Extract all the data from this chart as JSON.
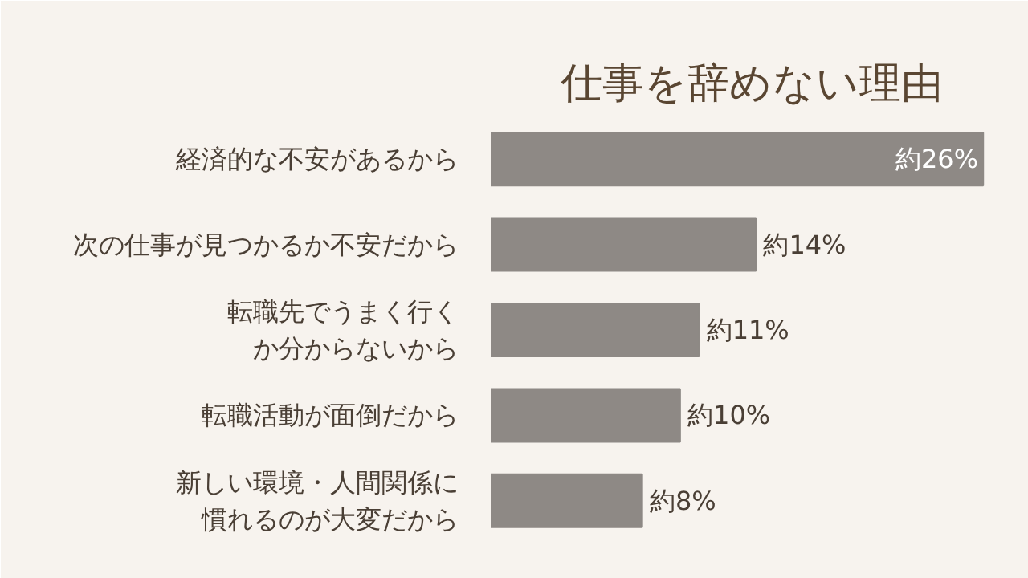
{
  "chart_data": {
    "type": "bar",
    "orientation": "horizontal",
    "title": "仕事を辞めない理由",
    "categories": [
      "経済的な不安があるから",
      "次の仕事が見つかるか不安だから",
      "転職先でうまく行くか分からないから",
      "転職活動が面倒だから",
      "新しい環境・人間関係に慣れるのが大変だから"
    ],
    "values": [
      26,
      14,
      11,
      10,
      8
    ],
    "value_labels": [
      "約26%",
      "約14%",
      "約11%",
      "約10%",
      "約8%"
    ],
    "color": "#8e8985",
    "grid": false,
    "tick_labels": "y"
  }
}
